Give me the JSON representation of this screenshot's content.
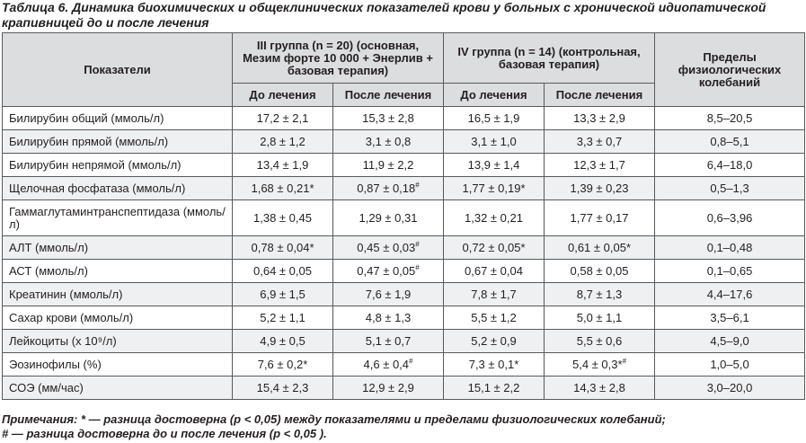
{
  "caption": "Таблица 6. Динамика биохимических и общеклинических показателей крови у больных с хронической идиопатической крапивницей до и после лечения",
  "table": {
    "header": {
      "indicator": "Показатели",
      "group3": "III группа (n = 20) (основная, Мезим форте 10 000 + Энерлив + базовая терапия)",
      "group4": "IV группа (n = 14) (контрольная, базовая терапия)",
      "limits": "Пределы физиологических колебаний",
      "before": "До лечения",
      "after": "После лечения"
    },
    "rows": [
      {
        "name": "Билирубин общий (ммоль/л)",
        "g3_before": "17,2 ± 2,1",
        "g3_after": "15,3 ± 2,8",
        "g4_before": "16,5 ± 1,9",
        "g4_after": "13,3 ± 2,9",
        "limits": "8,5–20,5"
      },
      {
        "name": "Билирубин прямой (ммоль/л)",
        "g3_before": "2,8 ± 1,2",
        "g3_after": "3,1 ± 0,8",
        "g4_before": "3,1 ± 1,0",
        "g4_after": "3,3 ± 0,7",
        "limits": "0,8–5,1"
      },
      {
        "name": "Билирубин непрямой (ммоль/л)",
        "g3_before": "13,4 ± 1,9",
        "g3_after": "11,9 ± 2,2",
        "g4_before": "13,9 ± 1,4",
        "g4_after": "12,3 ± 1,7",
        "limits": "6,4–18,0"
      },
      {
        "name": "Щелочная фосфатаза (ммоль/л)",
        "g3_before": "1,68 ± 0,21*",
        "g3_after": "0,87 ± 0,18#",
        "g4_before": "1,77 ± 0,19*",
        "g4_after": "1,39 ± 0,23",
        "limits": "0,5–1,3"
      },
      {
        "name": "Гаммаглутаминтранспептидаза (ммоль/л)",
        "g3_before": "1,38 ± 0,45",
        "g3_after": "1,29 ± 0,31",
        "g4_before": "1,32 ± 0,21",
        "g4_after": "1,77 ± 0,17",
        "limits": "0,6–3,96"
      },
      {
        "name": "АЛТ (ммоль/л)",
        "g3_before": "0,78 ± 0,04*",
        "g3_after": "0,45 ± 0,03#",
        "g4_before": "0,72 ± 0,05*",
        "g4_after": "0,61 ± 0,05*",
        "limits": "0,1–0,48"
      },
      {
        "name": "АСТ (ммоль/л)",
        "g3_before": "0,64 ± 0,05",
        "g3_after": "0,47 ± 0,05#",
        "g4_before": "0,67 ± 0,04",
        "g4_after": "0,58 ± 0,05",
        "limits": "0,1–0,65"
      },
      {
        "name": "Креатинин (ммоль/л)",
        "g3_before": "6,9 ± 1,5",
        "g3_after": "7,6 ± 1,9",
        "g4_before": "7,8 ± 1,7",
        "g4_after": "8,7 ± 1,3",
        "limits": "4,4–17,6"
      },
      {
        "name": "Сахар крови (ммоль/л)",
        "g3_before": "5,2 ± 1,1",
        "g3_after": "4,8 ± 1,3",
        "g4_before": "5,5 ± 1,2",
        "g4_after": "5,0 ± 1,1",
        "limits": "3,5–6,1"
      },
      {
        "name": "Лейкоциты (x 10⁹/л)",
        "g3_before": "4,9 ± 0,5",
        "g3_after": "5,1 ± 0,7",
        "g4_before": "5,2 ± 0,9",
        "g4_after": "5,5 ± 0,6",
        "limits": "4,5–9,0"
      },
      {
        "name": "Эозинофилы (%)",
        "g3_before": "7,6 ± 0,2*",
        "g3_after": "4,6 ± 0,4#",
        "g4_before": "7,3 ± 0,1*",
        "g4_after": "5,4 ± 0,3*#",
        "limits": "1,0–5,0"
      },
      {
        "name": "СОЭ (мм/час)",
        "g3_before": "15,4 ± 2,3",
        "g3_after": "12,9 ± 2,9",
        "g4_before": "15,1 ± 2,2",
        "g4_after": "14,3 ± 2,8",
        "limits": "3,0–20,0"
      }
    ]
  },
  "notes": {
    "line1": "Примечания: * — разница достоверна (р < 0,05) между показателями и пределами физиологических колебаний;",
    "line2": "# — разница достоверна до и после лечения (р < 0,05 )."
  }
}
